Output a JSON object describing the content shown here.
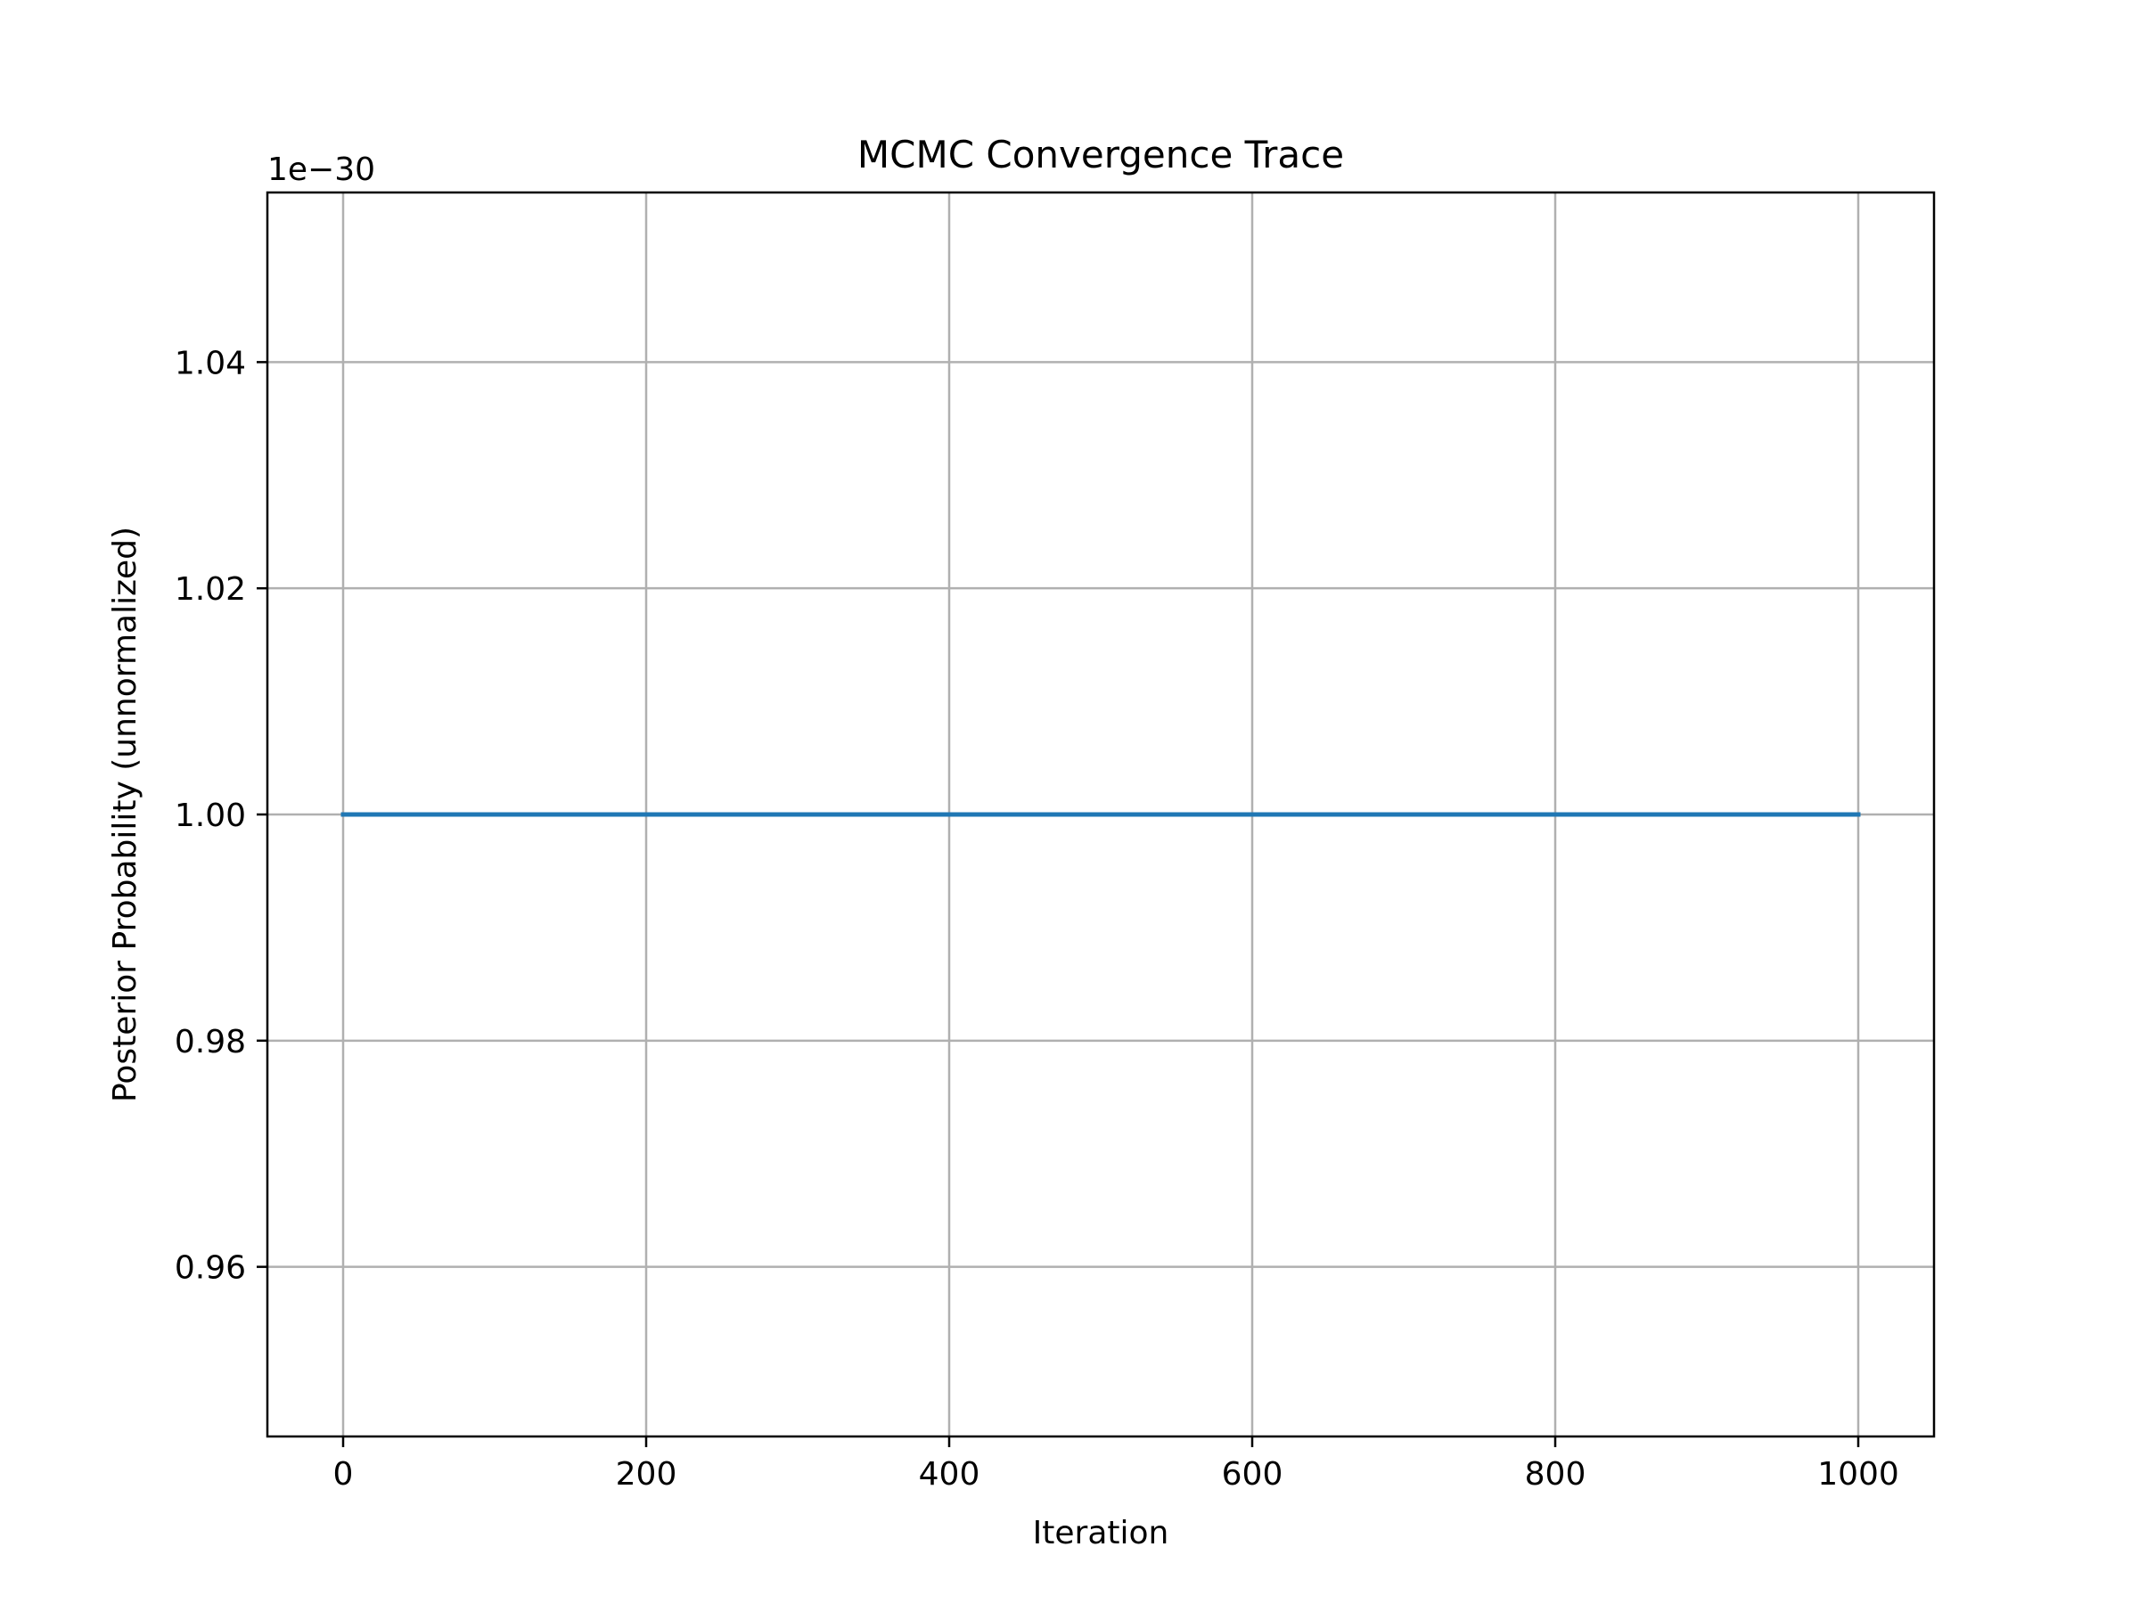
{
  "chart_data": {
    "type": "line",
    "title": "MCMC Convergence Trace",
    "xlabel": "Iteration",
    "ylabel": "Posterior Probability (unnormalized)",
    "y_offset_label": "1e−30",
    "xlim": [
      -50,
      1050
    ],
    "ylim": [
      0.945,
      1.055
    ],
    "x_ticks": [
      0,
      200,
      400,
      600,
      800,
      1000
    ],
    "x_tick_labels": [
      "0",
      "200",
      "400",
      "600",
      "800",
      "1000"
    ],
    "y_ticks": [
      0.96,
      0.98,
      1.0,
      1.02,
      1.04
    ],
    "y_tick_labels": [
      "0.96",
      "0.98",
      "1.00",
      "1.02",
      "1.04"
    ],
    "grid": true,
    "series": [
      {
        "x": [
          0,
          1000
        ],
        "y": [
          1.0,
          1.0
        ],
        "color": "#1f77b4"
      }
    ]
  }
}
